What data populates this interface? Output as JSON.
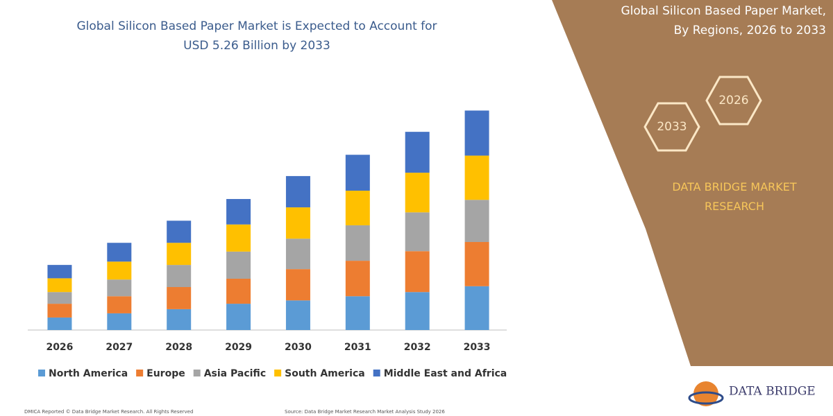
{
  "chart_data": {
    "type": "stacked-bar",
    "title": "Global Silicon Based Paper Market is Expected to Account for USD 5.26 Billion by 2033",
    "categories": [
      "2026",
      "2027",
      "2028",
      "2029",
      "2030",
      "2031",
      "2032",
      "2033"
    ],
    "series": [
      {
        "name": "North America",
        "color": "#5b9bd5",
        "values": [
          0.3,
          0.4,
          0.5,
          0.63,
          0.71,
          0.81,
          0.91,
          1.05
        ]
      },
      {
        "name": "Europe",
        "color": "#ed7d31",
        "values": [
          0.33,
          0.41,
          0.53,
          0.6,
          0.75,
          0.85,
          0.98,
          1.06
        ]
      },
      {
        "name": "Asia Pacific",
        "color": "#a5a5a5",
        "values": [
          0.28,
          0.4,
          0.53,
          0.65,
          0.73,
          0.85,
          0.93,
          1.01
        ]
      },
      {
        "name": "South America",
        "color": "#ffc000",
        "values": [
          0.33,
          0.43,
          0.53,
          0.65,
          0.75,
          0.83,
          0.95,
          1.06
        ]
      },
      {
        "name": "Middle East and Africa",
        "color": "#4472c4",
        "values": [
          0.32,
          0.45,
          0.53,
          0.61,
          0.75,
          0.86,
          0.98,
          1.08
        ]
      }
    ],
    "ylim": [
      0,
      5.5
    ]
  },
  "side_panel": {
    "title": "Global Silicon Based Paper Market, By Regions, 2026 to 2033",
    "hexagons": [
      "2033",
      "2026"
    ],
    "brand": "DATA BRIDGE MARKET RESEARCH"
  },
  "logo": "DATA BRIDGE",
  "footer": [
    "DMICA Reported © Data Bridge Market Research. All Rights Reserved",
    "Source: Data Bridge Market Research Market Analysis Study 2026"
  ]
}
